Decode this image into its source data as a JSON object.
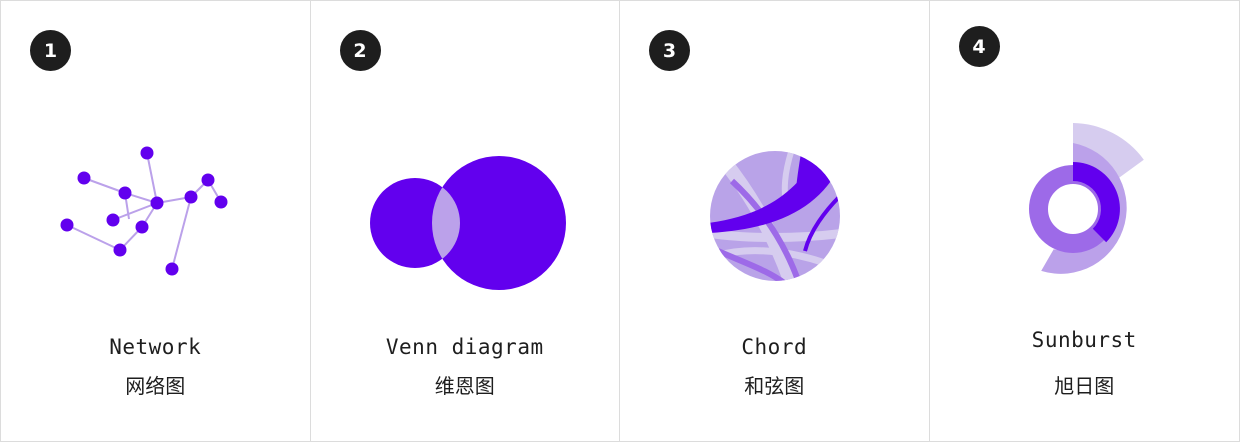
{
  "colors": {
    "primary": "#6200ee",
    "medium": "#9d6ae8",
    "light": "#bba1ea",
    "pale": "#d6ccef",
    "badge": "#1e1e1e"
  },
  "cards": [
    {
      "number": "1",
      "title_en": "Network",
      "title_zh": "网络图",
      "icon": "network-diagram-icon"
    },
    {
      "number": "2",
      "title_en": "Venn diagram",
      "title_zh": "维恩图",
      "icon": "venn-diagram-icon"
    },
    {
      "number": "3",
      "title_en": "Chord",
      "title_zh": "和弦图",
      "icon": "chord-diagram-icon"
    },
    {
      "number": "4",
      "title_en": "Sunburst",
      "title_zh": "旭日图",
      "icon": "sunburst-diagram-icon"
    }
  ]
}
